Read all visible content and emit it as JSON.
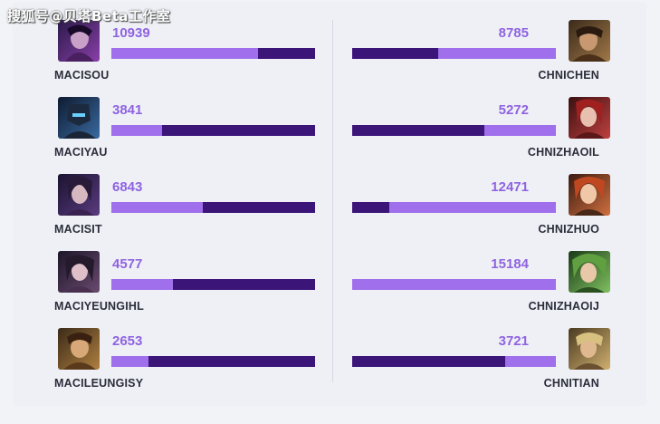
{
  "watermark": "搜狐号@贝塔Beta工作室",
  "colors": {
    "bar_track": "#3c1578",
    "bar_fill": "#a070ec",
    "value_text": "#8f63e0",
    "name_text": "#2b2d3a"
  },
  "max_value": 15184,
  "left_players": [
    {
      "name": "MACISOU",
      "value": "10939",
      "fraction": 0.72,
      "avatar": "champion-portrait-icon"
    },
    {
      "name": "MACIYAU",
      "value": "3841",
      "fraction": 0.25,
      "avatar": "champion-portrait-icon"
    },
    {
      "name": "MACISIT",
      "value": "6843",
      "fraction": 0.45,
      "avatar": "champion-portrait-icon"
    },
    {
      "name": "MACIYEUNGIHL",
      "value": "4577",
      "fraction": 0.3,
      "avatar": "champion-portrait-icon"
    },
    {
      "name": "MACILEUNGISY",
      "value": "2653",
      "fraction": 0.18,
      "avatar": "champion-portrait-icon"
    }
  ],
  "right_players": [
    {
      "name": "CHNICHEN",
      "value": "8785",
      "fraction": 0.58,
      "avatar": "champion-portrait-icon"
    },
    {
      "name": "CHNIZHAOIL",
      "value": "5272",
      "fraction": 0.35,
      "avatar": "champion-portrait-icon"
    },
    {
      "name": "CHNIZHUO",
      "value": "12471",
      "fraction": 0.82,
      "avatar": "champion-portrait-icon"
    },
    {
      "name": "CHNIZHAOIJ",
      "value": "15184",
      "fraction": 1.0,
      "avatar": "champion-portrait-icon"
    },
    {
      "name": "CHNITIAN",
      "value": "3721",
      "fraction": 0.25,
      "avatar": "champion-portrait-icon"
    }
  ]
}
